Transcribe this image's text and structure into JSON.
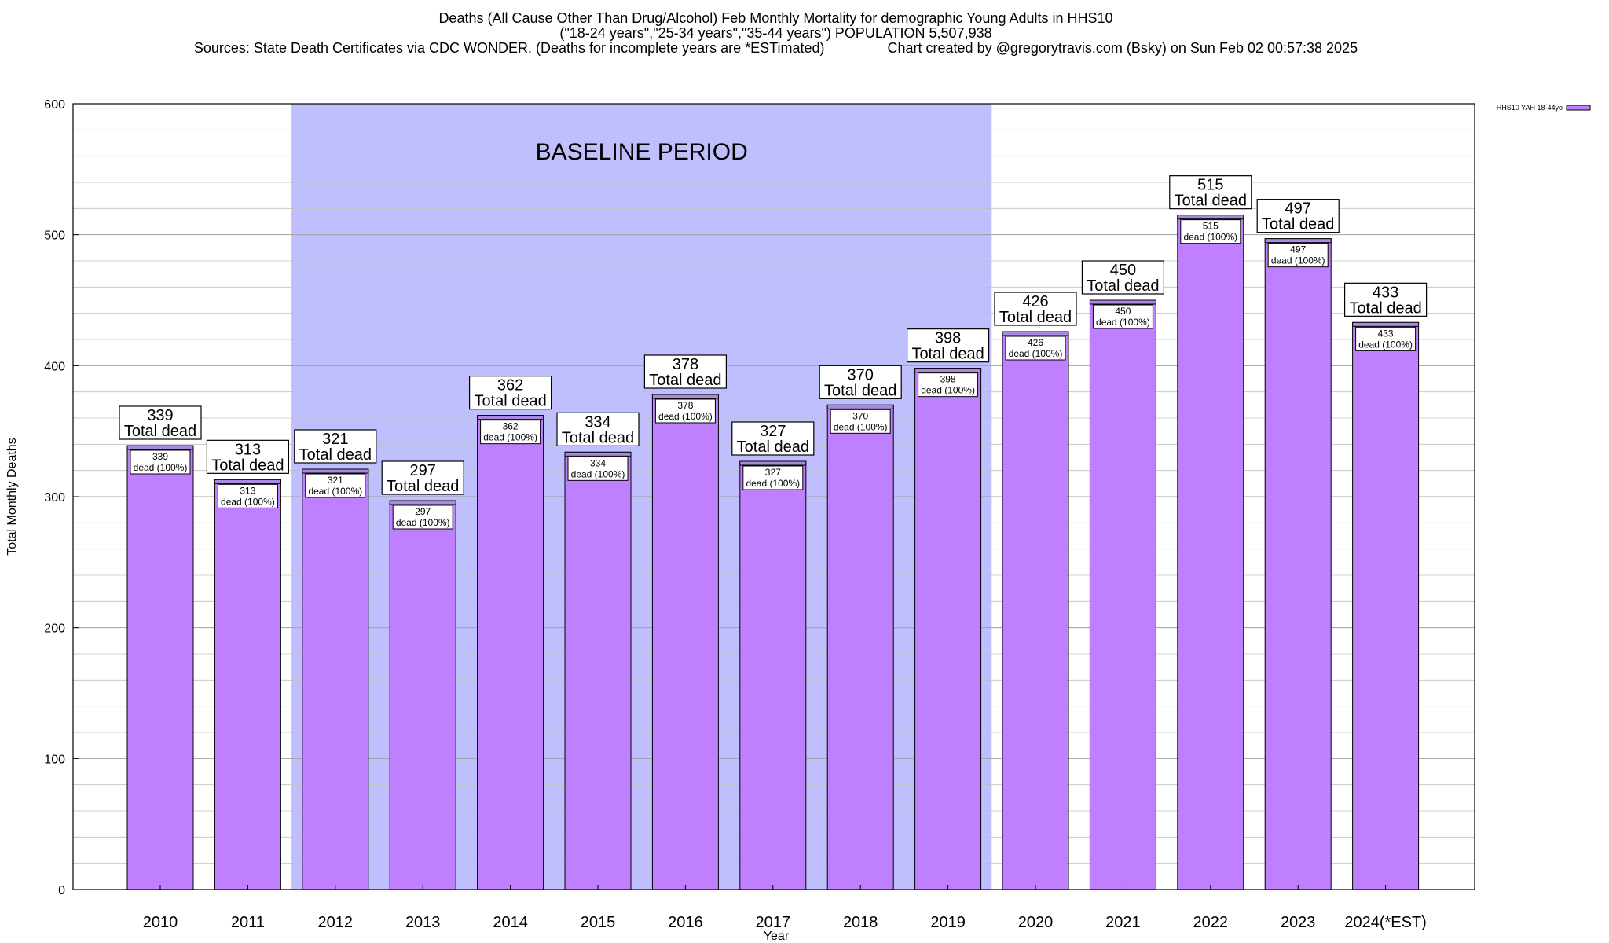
{
  "title_lines": [
    "Deaths (All Cause Other Than Drug/Alcohol) Feb Monthly Mortality for demographic Young Adults in HHS10",
    "(\"18-24 years\",\"25-34 years\",\"35-44 years\") POPULATION 5,507,938",
    "Sources: State Death Certificates via CDC WONDER. (Deaths for incomplete years are *ESTimated)                Chart created by @gregorytravis.com (Bsky) on Sun Feb 02 00:57:38 2025"
  ],
  "colors": {
    "bar": "#bf80ff",
    "bar_top": "#a98adf",
    "baseline_band": "#bfbffd",
    "grid": "#c0c0c0"
  },
  "chart_data": {
    "type": "bar",
    "xlabel": "Year",
    "ylabel": "Total Monthly Deaths",
    "ylim": [
      0,
      600
    ],
    "yticks": [
      0,
      100,
      200,
      300,
      400,
      500,
      600
    ],
    "grid": true,
    "legend": {
      "placement": "top-right",
      "label": "HHS10 YAH 18-44yo"
    },
    "baseline": {
      "label": "BASELINE PERIOD",
      "from": "2012",
      "to": "2019"
    },
    "categories": [
      "2010",
      "2011",
      "2012",
      "2013",
      "2014",
      "2015",
      "2016",
      "2017",
      "2018",
      "2019",
      "2020",
      "2021",
      "2022",
      "2023",
      "2024(*EST)"
    ],
    "series": [
      {
        "name": "HHS10 YAH 18-44yo",
        "values": [
          339,
          313,
          321,
          297,
          362,
          334,
          378,
          327,
          370,
          398,
          426,
          450,
          515,
          497,
          433
        ]
      }
    ],
    "top_label_suffix": "Total dead",
    "inner_label_suffix": "dead (100%)"
  }
}
